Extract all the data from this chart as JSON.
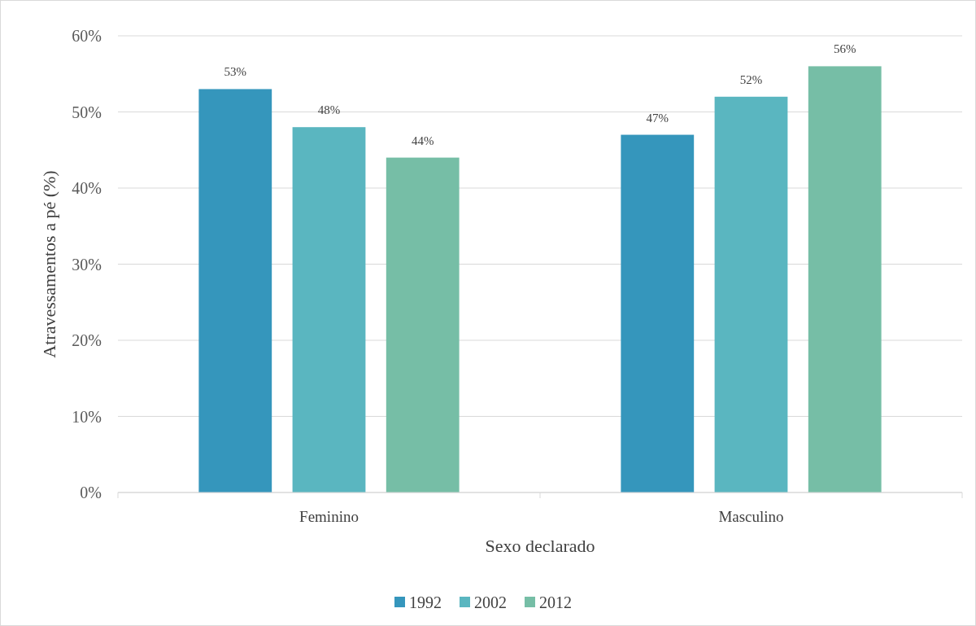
{
  "chart_data": {
    "type": "bar",
    "xlabel": "Sexo declarado",
    "ylabel": "Atravessamentos a pé (%)",
    "categories": [
      "Feminino",
      "Masculino"
    ],
    "series": [
      {
        "name": "1992",
        "color": "#3596bc",
        "values": [
          53,
          47
        ],
        "value_labels": [
          "53%",
          "47%"
        ]
      },
      {
        "name": "2002",
        "color": "#5ab6c0",
        "values": [
          48,
          52
        ],
        "value_labels": [
          "48%",
          "52%"
        ]
      },
      {
        "name": "2012",
        "color": "#76bea6",
        "values": [
          44,
          56
        ],
        "value_labels": [
          "44%",
          "56%"
        ]
      }
    ],
    "ylim": [
      0,
      60
    ],
    "yticks": [
      {
        "value": 0,
        "label": "0%"
      },
      {
        "value": 10,
        "label": "10%"
      },
      {
        "value": 20,
        "label": "20%"
      },
      {
        "value": 30,
        "label": "30%"
      },
      {
        "value": 40,
        "label": "40%"
      },
      {
        "value": 50,
        "label": "50%"
      },
      {
        "value": 60,
        "label": "60%"
      }
    ],
    "grid": "y",
    "legend": "bottom"
  }
}
